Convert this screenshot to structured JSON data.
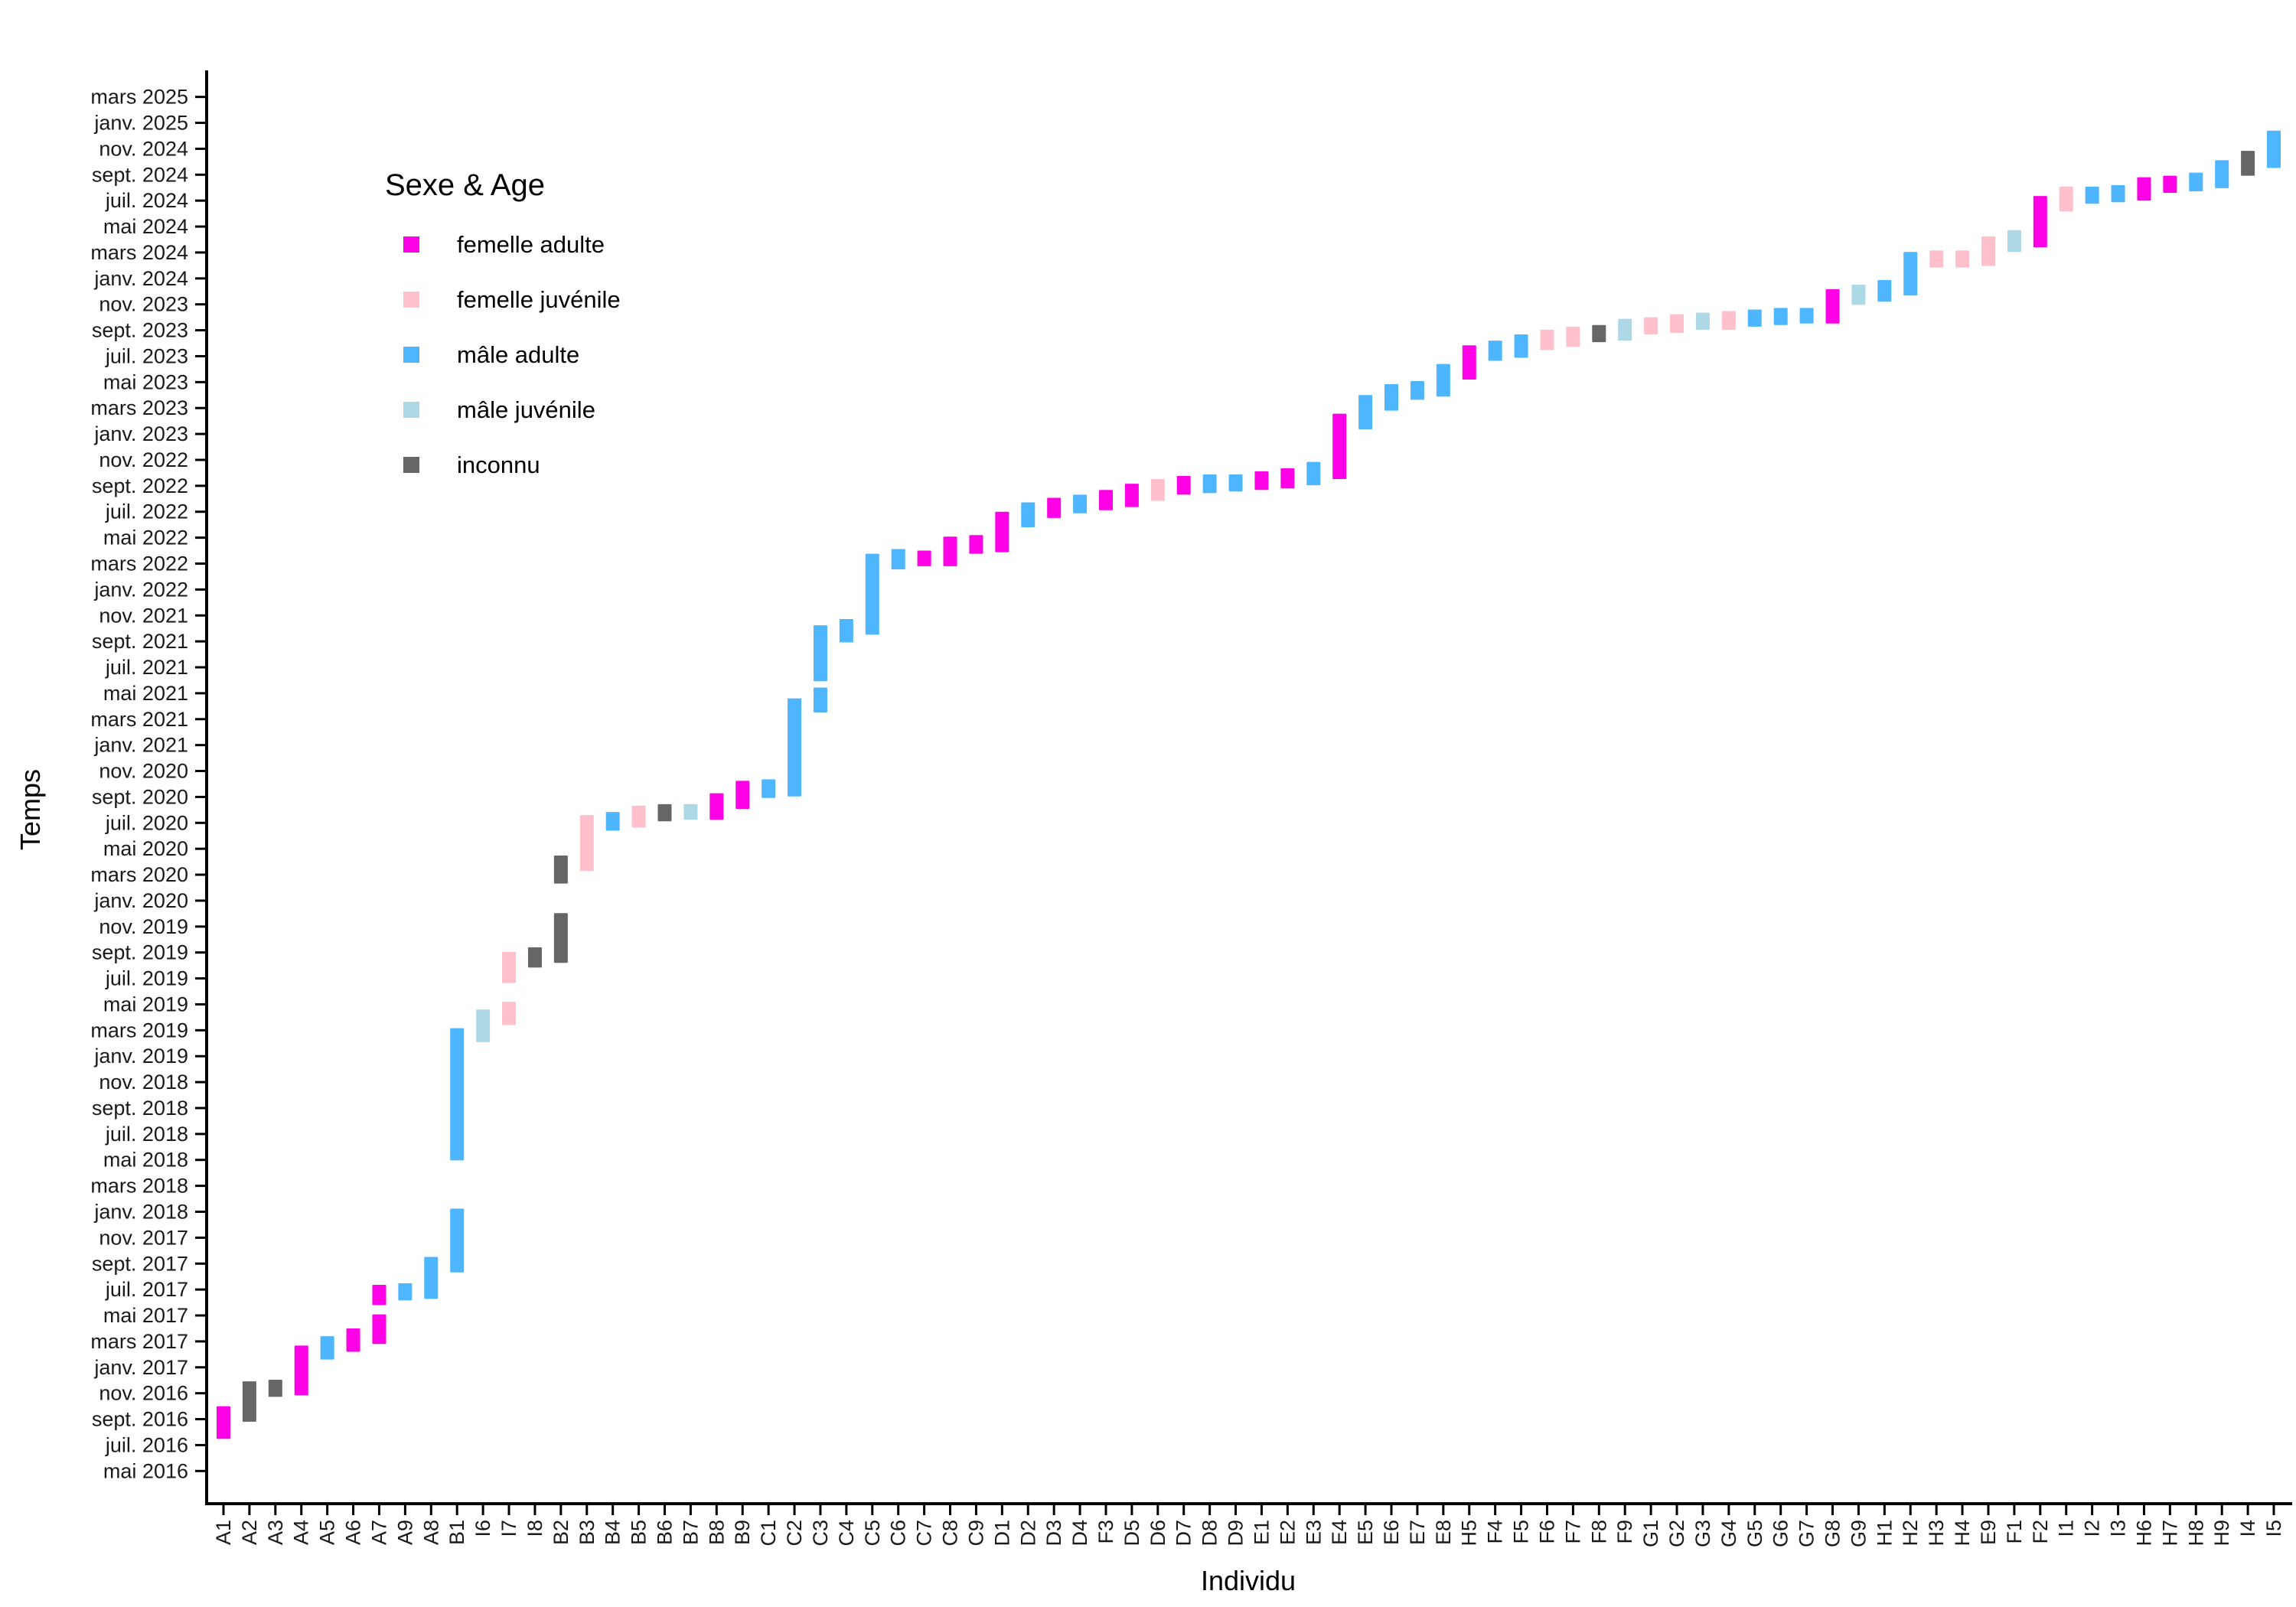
{
  "chart_data": {
    "type": "range-bar",
    "xlabel": "Individu",
    "ylabel": "Temps",
    "y_unit": "decimal year",
    "ylim": [
      2016.25,
      2025.33
    ],
    "grid": false,
    "legend": {
      "title": "Sexe & Age",
      "placement": "top-left inside",
      "entries": [
        {
          "key": "fa",
          "label": "femelle adulte",
          "color": "#FF00E6"
        },
        {
          "key": "fj",
          "label": "femelle juvénile",
          "color": "#FFC0CB"
        },
        {
          "key": "ma",
          "label": "mâle adulte",
          "color": "#4DB6FF"
        },
        {
          "key": "mj",
          "label": "mâle juvénile",
          "color": "#ADD8E6"
        },
        {
          "key": "in",
          "label": "inconnu",
          "color": "#666666"
        }
      ]
    },
    "y_ticks": {
      "start": 2016.3333,
      "step_months": 2,
      "labels": [
        "mai 2016",
        "juil. 2016",
        "sept. 2016",
        "nov. 2016",
        "janv. 2017",
        "mars 2017",
        "mai 2017",
        "juil. 2017",
        "sept. 2017",
        "nov. 2017",
        "janv. 2018",
        "mars 2018",
        "mai 2018",
        "juil. 2018",
        "sept. 2018",
        "nov. 2018",
        "janv. 2019",
        "mars 2019",
        "mai 2019",
        "juil. 2019",
        "sept. 2019",
        "nov. 2019",
        "janv. 2020",
        "mars 2020",
        "mai 2020",
        "juil. 2020",
        "sept. 2020",
        "nov. 2020",
        "janv. 2021",
        "mars 2021",
        "mai 2021",
        "juil. 2021",
        "sept. 2021",
        "nov. 2021",
        "janv. 2022",
        "mars 2022",
        "mai 2022",
        "juil. 2022",
        "sept. 2022",
        "nov. 2022",
        "janv. 2023",
        "mars 2023",
        "mai 2023",
        "juil. 2023",
        "sept. 2023",
        "nov. 2023",
        "janv. 2024",
        "mars 2024",
        "mai 2024",
        "juil. 2024",
        "sept. 2024",
        "nov. 2024",
        "janv. 2025",
        "mars 2025"
      ]
    },
    "individuals": [
      {
        "id": "A1",
        "group": "fa",
        "segments": [
          [
            2016.54,
            2016.75
          ]
        ]
      },
      {
        "id": "A2",
        "group": "in",
        "segments": [
          [
            2016.65,
            2016.91
          ]
        ]
      },
      {
        "id": "A3",
        "group": "in",
        "segments": [
          [
            2016.81,
            2016.92
          ]
        ]
      },
      {
        "id": "A4",
        "group": "fa",
        "segments": [
          [
            2016.82,
            2017.14
          ]
        ]
      },
      {
        "id": "A5",
        "group": "ma",
        "segments": [
          [
            2017.05,
            2017.2
          ]
        ]
      },
      {
        "id": "A6",
        "group": "fa",
        "segments": [
          [
            2017.1,
            2017.25
          ]
        ]
      },
      {
        "id": "A7",
        "group": "fa",
        "segments": [
          [
            2017.15,
            2017.34
          ],
          [
            2017.4,
            2017.53
          ]
        ]
      },
      {
        "id": "A9",
        "group": "ma",
        "segments": [
          [
            2017.43,
            2017.54
          ]
        ]
      },
      {
        "id": "A8",
        "group": "ma",
        "segments": [
          [
            2017.44,
            2017.71
          ]
        ]
      },
      {
        "id": "B1",
        "group": "ma",
        "segments": [
          [
            2017.61,
            2018.02
          ],
          [
            2018.33,
            2019.18
          ]
        ]
      },
      {
        "id": "I6",
        "group": "mj",
        "segments": [
          [
            2019.09,
            2019.3
          ]
        ]
      },
      {
        "id": "I7",
        "group": "fj",
        "segments": [
          [
            2019.2,
            2019.35
          ],
          [
            2019.47,
            2019.67
          ]
        ]
      },
      {
        "id": "I8",
        "group": "in",
        "segments": [
          [
            2019.57,
            2019.7
          ]
        ]
      },
      {
        "id": "B2",
        "group": "in",
        "segments": [
          [
            2019.6,
            2019.92
          ],
          [
            2020.11,
            2020.29
          ]
        ]
      },
      {
        "id": "B3",
        "group": "fj",
        "segments": [
          [
            2020.19,
            2020.55
          ]
        ]
      },
      {
        "id": "B4",
        "group": "ma",
        "segments": [
          [
            2020.45,
            2020.57
          ]
        ]
      },
      {
        "id": "B5",
        "group": "fj",
        "segments": [
          [
            2020.47,
            2020.61
          ]
        ]
      },
      {
        "id": "B6",
        "group": "in",
        "segments": [
          [
            2020.51,
            2020.62
          ]
        ]
      },
      {
        "id": "B7",
        "group": "mj",
        "segments": [
          [
            2020.52,
            2020.62
          ]
        ]
      },
      {
        "id": "B8",
        "group": "fa",
        "segments": [
          [
            2020.52,
            2020.69
          ]
        ]
      },
      {
        "id": "B9",
        "group": "fa",
        "segments": [
          [
            2020.59,
            2020.77
          ]
        ]
      },
      {
        "id": "C1",
        "group": "ma",
        "segments": [
          [
            2020.66,
            2020.78
          ]
        ]
      },
      {
        "id": "C2",
        "group": "ma",
        "segments": [
          [
            2020.67,
            2021.3
          ]
        ]
      },
      {
        "id": "C3",
        "group": "ma",
        "segments": [
          [
            2021.21,
            2021.37
          ],
          [
            2021.41,
            2021.77
          ]
        ]
      },
      {
        "id": "C4",
        "group": "ma",
        "segments": [
          [
            2021.66,
            2021.81
          ]
        ]
      },
      {
        "id": "C5",
        "group": "ma",
        "segments": [
          [
            2021.71,
            2022.23
          ]
        ]
      },
      {
        "id": "C6",
        "group": "ma",
        "segments": [
          [
            2022.13,
            2022.26
          ]
        ]
      },
      {
        "id": "C7",
        "group": "fa",
        "segments": [
          [
            2022.15,
            2022.25
          ]
        ]
      },
      {
        "id": "C8",
        "group": "fa",
        "segments": [
          [
            2022.15,
            2022.34
          ]
        ]
      },
      {
        "id": "C9",
        "group": "fa",
        "segments": [
          [
            2022.23,
            2022.35
          ]
        ]
      },
      {
        "id": "D1",
        "group": "fa",
        "segments": [
          [
            2022.24,
            2022.5
          ]
        ]
      },
      {
        "id": "D2",
        "group": "ma",
        "segments": [
          [
            2022.4,
            2022.56
          ]
        ]
      },
      {
        "id": "D3",
        "group": "fa",
        "segments": [
          [
            2022.46,
            2022.59
          ]
        ]
      },
      {
        "id": "D4",
        "group": "ma",
        "segments": [
          [
            2022.49,
            2022.61
          ]
        ]
      },
      {
        "id": "F3",
        "group": "fa",
        "segments": [
          [
            2022.51,
            2022.64
          ]
        ]
      },
      {
        "id": "D5",
        "group": "fa",
        "segments": [
          [
            2022.53,
            2022.68
          ]
        ]
      },
      {
        "id": "D6",
        "group": "fj",
        "segments": [
          [
            2022.57,
            2022.71
          ]
        ]
      },
      {
        "id": "D7",
        "group": "fa",
        "segments": [
          [
            2022.61,
            2022.73
          ]
        ]
      },
      {
        "id": "D8",
        "group": "ma",
        "segments": [
          [
            2022.62,
            2022.74
          ]
        ]
      },
      {
        "id": "D9",
        "group": "ma",
        "segments": [
          [
            2022.63,
            2022.74
          ]
        ]
      },
      {
        "id": "E1",
        "group": "fa",
        "segments": [
          [
            2022.64,
            2022.76
          ]
        ]
      },
      {
        "id": "E2",
        "group": "fa",
        "segments": [
          [
            2022.65,
            2022.78
          ]
        ]
      },
      {
        "id": "E3",
        "group": "ma",
        "segments": [
          [
            2022.67,
            2022.82
          ]
        ]
      },
      {
        "id": "E4",
        "group": "fa",
        "segments": [
          [
            2022.71,
            2023.13
          ]
        ]
      },
      {
        "id": "E5",
        "group": "ma",
        "segments": [
          [
            2023.03,
            2023.25
          ]
        ]
      },
      {
        "id": "E6",
        "group": "ma",
        "segments": [
          [
            2023.15,
            2023.32
          ]
        ]
      },
      {
        "id": "E7",
        "group": "ma",
        "segments": [
          [
            2023.22,
            2023.34
          ]
        ]
      },
      {
        "id": "E8",
        "group": "ma",
        "segments": [
          [
            2023.24,
            2023.45
          ]
        ]
      },
      {
        "id": "H5",
        "group": "fa",
        "segments": [
          [
            2023.35,
            2023.57
          ]
        ]
      },
      {
        "id": "F4",
        "group": "ma",
        "segments": [
          [
            2023.47,
            2023.6
          ]
        ]
      },
      {
        "id": "F5",
        "group": "ma",
        "segments": [
          [
            2023.49,
            2023.64
          ]
        ]
      },
      {
        "id": "F6",
        "group": "fj",
        "segments": [
          [
            2023.54,
            2023.67
          ]
        ]
      },
      {
        "id": "F7",
        "group": "fj",
        "segments": [
          [
            2023.56,
            2023.69
          ]
        ]
      },
      {
        "id": "F8",
        "group": "in",
        "segments": [
          [
            2023.59,
            2023.7
          ]
        ]
      },
      {
        "id": "F9",
        "group": "mj",
        "segments": [
          [
            2023.6,
            2023.74
          ]
        ]
      },
      {
        "id": "G1",
        "group": "fj",
        "segments": [
          [
            2023.64,
            2023.75
          ]
        ]
      },
      {
        "id": "G2",
        "group": "fj",
        "segments": [
          [
            2023.65,
            2023.77
          ]
        ]
      },
      {
        "id": "G3",
        "group": "mj",
        "segments": [
          [
            2023.67,
            2023.78
          ]
        ]
      },
      {
        "id": "G4",
        "group": "fj",
        "segments": [
          [
            2023.67,
            2023.79
          ]
        ]
      },
      {
        "id": "G5",
        "group": "ma",
        "segments": [
          [
            2023.69,
            2023.8
          ]
        ]
      },
      {
        "id": "G6",
        "group": "ma",
        "segments": [
          [
            2023.7,
            2023.81
          ]
        ]
      },
      {
        "id": "G7",
        "group": "ma",
        "segments": [
          [
            2023.71,
            2023.81
          ]
        ]
      },
      {
        "id": "G8",
        "group": "fa",
        "segments": [
          [
            2023.71,
            2023.93
          ]
        ]
      },
      {
        "id": "G9",
        "group": "mj",
        "segments": [
          [
            2023.83,
            2023.96
          ]
        ]
      },
      {
        "id": "H1",
        "group": "ma",
        "segments": [
          [
            2023.85,
            2023.99
          ]
        ]
      },
      {
        "id": "H2",
        "group": "ma",
        "segments": [
          [
            2023.89,
            2024.17
          ]
        ]
      },
      {
        "id": "H3",
        "group": "fj",
        "segments": [
          [
            2024.07,
            2024.18
          ]
        ]
      },
      {
        "id": "H4",
        "group": "fj",
        "segments": [
          [
            2024.07,
            2024.18
          ]
        ]
      },
      {
        "id": "E9",
        "group": "fj",
        "segments": [
          [
            2024.08,
            2024.27
          ]
        ]
      },
      {
        "id": "F1",
        "group": "mj",
        "segments": [
          [
            2024.17,
            2024.31
          ]
        ]
      },
      {
        "id": "F2",
        "group": "fa",
        "segments": [
          [
            2024.2,
            2024.53
          ]
        ]
      },
      {
        "id": "I1",
        "group": "fj",
        "segments": [
          [
            2024.43,
            2024.59
          ]
        ]
      },
      {
        "id": "I2",
        "group": "ma",
        "segments": [
          [
            2024.48,
            2024.59
          ]
        ]
      },
      {
        "id": "I3",
        "group": "ma",
        "segments": [
          [
            2024.49,
            2024.6
          ]
        ]
      },
      {
        "id": "H6",
        "group": "fa",
        "segments": [
          [
            2024.5,
            2024.65
          ]
        ]
      },
      {
        "id": "H7",
        "group": "fa",
        "segments": [
          [
            2024.55,
            2024.66
          ]
        ]
      },
      {
        "id": "H8",
        "group": "ma",
        "segments": [
          [
            2024.56,
            2024.68
          ]
        ]
      },
      {
        "id": "H9",
        "group": "ma",
        "segments": [
          [
            2024.58,
            2024.76
          ]
        ]
      },
      {
        "id": "I4",
        "group": "in",
        "segments": [
          [
            2024.66,
            2024.82
          ]
        ]
      },
      {
        "id": "I5",
        "group": "ma",
        "segments": [
          [
            2024.71,
            2024.95
          ]
        ]
      }
    ]
  }
}
